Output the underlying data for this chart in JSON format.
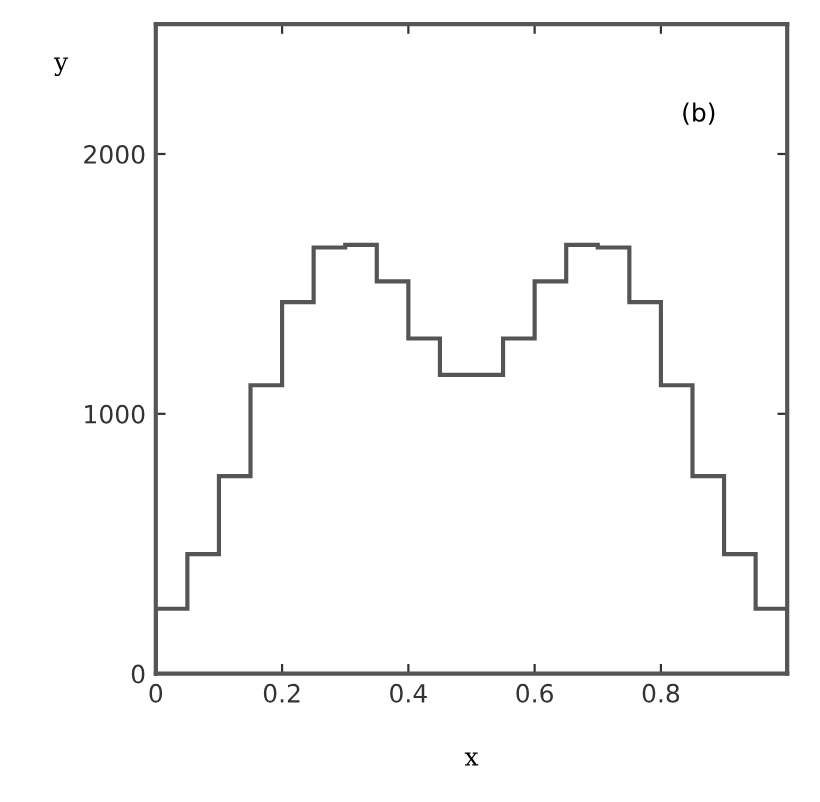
{
  "chart_data": {
    "type": "histogram",
    "xlabel": "x",
    "ylabel": "y",
    "annotations": [
      "(b)"
    ],
    "bins": [
      0,
      0.05,
      0.1,
      0.15,
      0.2,
      0.25,
      0.3,
      0.35,
      0.4,
      0.45,
      0.5,
      0.55,
      0.6,
      0.65,
      0.7,
      0.75,
      0.8,
      0.85,
      0.9,
      0.95,
      1.0
    ],
    "values": [
      250,
      460,
      760,
      1110,
      1430,
      1640,
      1650,
      1510,
      1290,
      1150,
      1150,
      1290,
      1510,
      1650,
      1640,
      1430,
      1110,
      760,
      460,
      250
    ],
    "color": "#555555",
    "xlim": [
      0,
      1
    ],
    "ylim": [
      0,
      2500
    ],
    "xticks": [
      0,
      0.2,
      0.4,
      0.6,
      0.8
    ],
    "yticks": [
      0,
      1000,
      2000
    ],
    "grid": false
  }
}
